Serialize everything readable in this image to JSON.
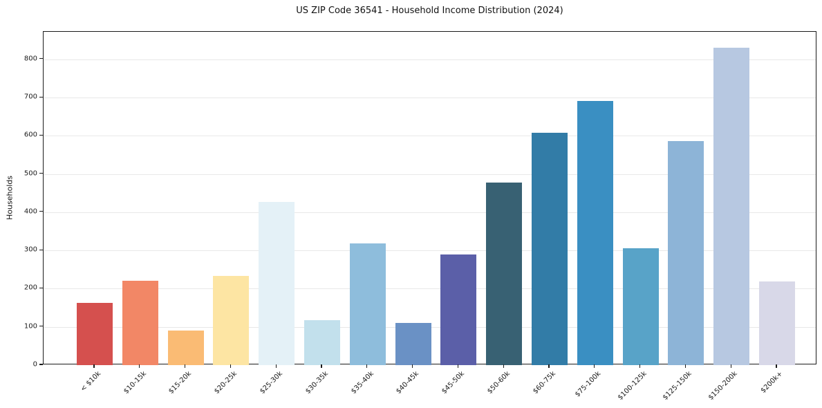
{
  "chart_data": {
    "type": "bar",
    "title": "US ZIP Code 36541 - Household Income Distribution (2024)",
    "xlabel": "",
    "ylabel": "Households",
    "categories": [
      "< $10k",
      "$10-15k",
      "$15-20k",
      "$20-25k",
      "$25-30k",
      "$30-35k",
      "$35-40k",
      "$40-45k",
      "$45-50k",
      "$50-60k",
      "$60-75k",
      "$75-100k",
      "$100-125k",
      "$125-150k",
      "$150-200k",
      "$200k+"
    ],
    "values": [
      163,
      220,
      91,
      233,
      427,
      118,
      318,
      111,
      289,
      478,
      608,
      691,
      305,
      587,
      830,
      219
    ],
    "bar_colors": [
      "#d5504e",
      "#f28766",
      "#fabb74",
      "#fde5a3",
      "#e4f1f7",
      "#c2e0ec",
      "#8ebddc",
      "#6a91c5",
      "#5b5fa8",
      "#386173",
      "#327ca7",
      "#3a8fc2",
      "#58a3c8",
      "#8db4d7",
      "#b7c8e1",
      "#d8d8e8"
    ],
    "ylim": [
      0,
      872
    ],
    "yticks": [
      0,
      100,
      200,
      300,
      400,
      500,
      600,
      700,
      800
    ],
    "grid": "horizontal",
    "legend": "none",
    "spine_color": "#1a1a1a",
    "gridline_color": "#e8e8e8",
    "background_color": "#ffffff"
  }
}
